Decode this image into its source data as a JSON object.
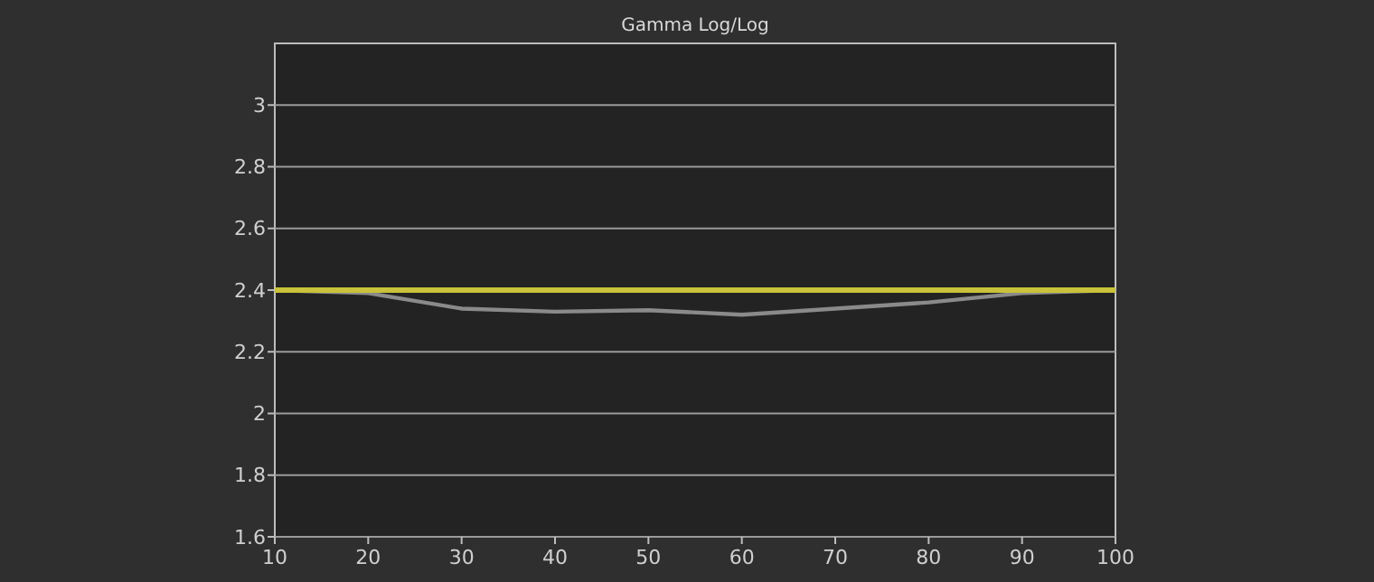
{
  "chart_data": {
    "type": "line",
    "title": "Gamma Log/Log",
    "x": [
      10,
      20,
      30,
      40,
      50,
      60,
      70,
      80,
      90,
      100
    ],
    "series": [
      {
        "color": "#8a8a8a",
        "values": [
          2.4,
          2.39,
          2.34,
          2.33,
          2.335,
          2.32,
          2.34,
          2.36,
          2.39,
          2.4
        ]
      }
    ],
    "ref_lines": [
      {
        "axis": "y",
        "value": 2.4,
        "color": "#c9c23a"
      }
    ],
    "xlim": [
      10,
      100
    ],
    "xticks": [
      10,
      20,
      30,
      40,
      50,
      60,
      70,
      80,
      90,
      100
    ],
    "ylim": [
      1.6,
      3.2
    ],
    "yticks": [
      1.6,
      1.8,
      2,
      2.2,
      2.4,
      2.6,
      2.8,
      3
    ],
    "grid": "y",
    "marker": "none",
    "line_style": "solid"
  }
}
